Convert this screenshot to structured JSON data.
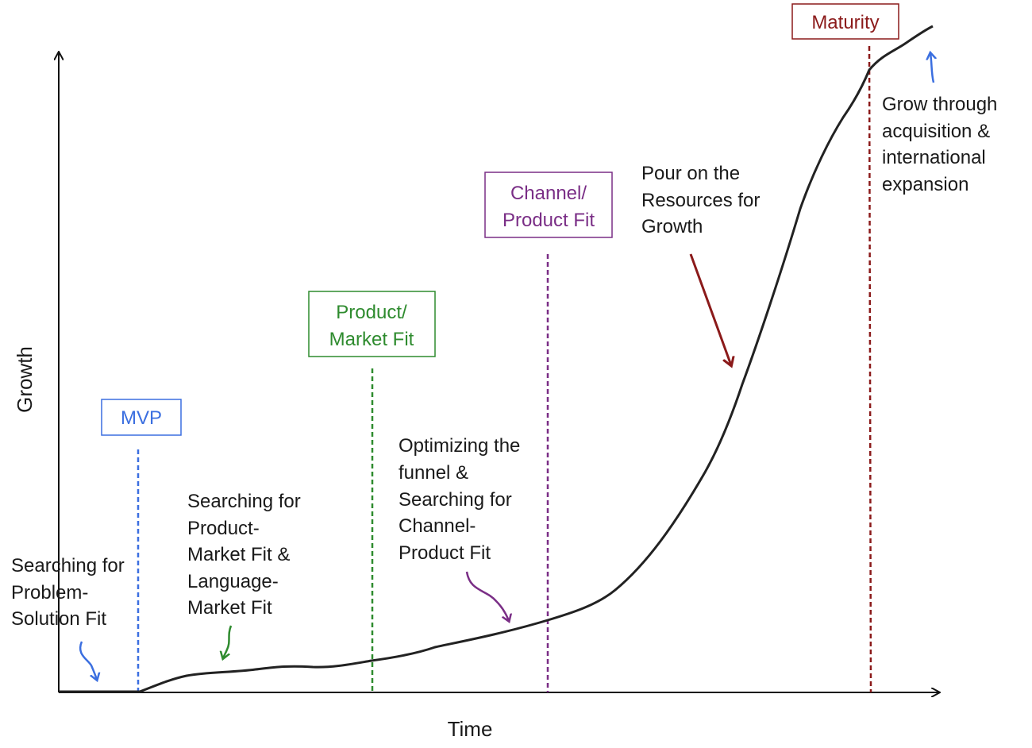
{
  "axes": {
    "x_label": "Time",
    "y_label": "Growth"
  },
  "milestones": [
    {
      "id": "mvp",
      "lines": [
        "MVP"
      ],
      "color": "#3b6fe0"
    },
    {
      "id": "product-market-fit",
      "lines": [
        "Product/",
        "Market Fit"
      ],
      "color": "#2e8b2e"
    },
    {
      "id": "channel-product-fit",
      "lines": [
        "Channel/",
        "Product Fit"
      ],
      "color": "#7a2e86"
    },
    {
      "id": "maturity",
      "lines": [
        "Maturity"
      ],
      "color": "#8b1a1a"
    }
  ],
  "annotations": [
    {
      "id": "problem-solution",
      "lines": [
        "Searching for",
        "Problem-",
        "Solution Fit"
      ],
      "arrow_color": "#3b6fe0"
    },
    {
      "id": "product-market-search",
      "lines": [
        "Searching for",
        "Product-",
        "Market Fit &",
        "Language-",
        "Market Fit"
      ],
      "arrow_color": "#2e8b2e"
    },
    {
      "id": "funnel",
      "lines": [
        "Optimizing the",
        "funnel &",
        "Searching for",
        "Channel-",
        "Product Fit"
      ],
      "arrow_color": "#7a2e86"
    },
    {
      "id": "resources",
      "lines": [
        "Pour on the",
        "Resources for",
        "Growth"
      ],
      "arrow_color": "#8b1a1a"
    },
    {
      "id": "acquisition",
      "lines": [
        "Grow through",
        "acquisition &",
        "international",
        "expansion"
      ],
      "arrow_color": "#3b6fe0"
    }
  ],
  "curve_color": "#222222"
}
